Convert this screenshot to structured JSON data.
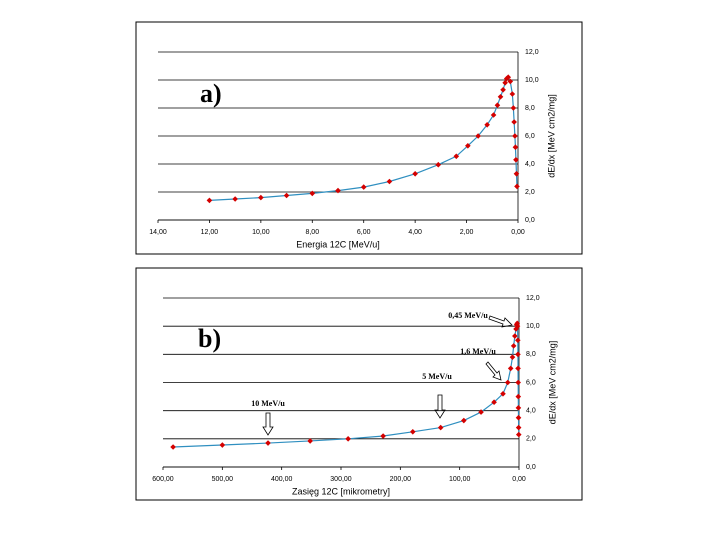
{
  "chart_data": [
    {
      "type": "line",
      "annotation": "a)",
      "x_label": "Energia 12C [MeV/u]",
      "y_label": "dE/dx [MeV cm2/mg]",
      "xlim": [
        14,
        0
      ],
      "ylim": [
        0,
        12
      ],
      "xticks": [
        {
          "value": 14,
          "label": "14,00"
        },
        {
          "value": 12,
          "label": "12,00"
        },
        {
          "value": 10,
          "label": "10,00"
        },
        {
          "value": 8,
          "label": "8,00"
        },
        {
          "value": 6,
          "label": "6,00"
        },
        {
          "value": 4,
          "label": "4,00"
        },
        {
          "value": 2,
          "label": "2,00"
        },
        {
          "value": 0,
          "label": "0,00"
        }
      ],
      "yticks": [
        {
          "value": 0,
          "label": "0,0"
        },
        {
          "value": 2,
          "label": "2,0"
        },
        {
          "value": 4,
          "label": "4,0"
        },
        {
          "value": 6,
          "label": "6,0"
        },
        {
          "value": 8,
          "label": "8,0"
        },
        {
          "value": 10,
          "label": "10,0"
        },
        {
          "value": 12,
          "label": "12,0"
        }
      ],
      "grid": true,
      "color": "#2f8fc0",
      "marker_color": "#d40000",
      "x": [
        12,
        11,
        10,
        9,
        8,
        7,
        6,
        5,
        4,
        3.1,
        2.4,
        1.95,
        1.55,
        1.2,
        0.95,
        0.8,
        0.68,
        0.58,
        0.5,
        0.44,
        0.38,
        0.3,
        0.22,
        0.18,
        0.15,
        0.12,
        0.1,
        0.08,
        0.06,
        0.04
      ],
      "values": [
        1.4,
        1.5,
        1.6,
        1.75,
        1.9,
        2.1,
        2.35,
        2.75,
        3.3,
        3.95,
        4.55,
        5.3,
        6.0,
        6.8,
        7.5,
        8.2,
        8.8,
        9.3,
        9.8,
        10.1,
        10.2,
        9.9,
        9.0,
        8.0,
        7.0,
        6.0,
        5.2,
        4.3,
        3.3,
        2.4
      ]
    },
    {
      "type": "line",
      "annotation": "b)",
      "notes": [
        "0,45 MeV/u",
        "1,6 MeV/u",
        "5 MeV/u",
        "10 MeV/u"
      ],
      "x_label": "Zasięg 12C [mikrometry]",
      "y_label": "dE/dx [MeV cm2/mg]",
      "xlim": [
        600,
        0
      ],
      "ylim": [
        0,
        12
      ],
      "xticks": [
        {
          "value": 600,
          "label": "600,00"
        },
        {
          "value": 500,
          "label": "500,00"
        },
        {
          "value": 400,
          "label": "400,00"
        },
        {
          "value": 300,
          "label": "300,00"
        },
        {
          "value": 200,
          "label": "200,00"
        },
        {
          "value": 100,
          "label": "100,00"
        },
        {
          "value": 0,
          "label": "0,00"
        }
      ],
      "yticks": [
        {
          "value": 0,
          "label": "0,0"
        },
        {
          "value": 2,
          "label": "2,0"
        },
        {
          "value": 4,
          "label": "4,0"
        },
        {
          "value": 6,
          "label": "6,0"
        },
        {
          "value": 8,
          "label": "8,0"
        },
        {
          "value": 10,
          "label": "10,0"
        },
        {
          "value": 12,
          "label": "12,0"
        }
      ],
      "grid": true,
      "color": "#2f8fc0",
      "marker_color": "#d40000",
      "x": [
        583,
        500,
        423,
        352,
        288,
        229,
        179,
        132,
        93,
        64,
        42,
        27,
        19,
        14,
        11,
        9,
        7,
        5,
        4,
        3,
        2.5,
        2,
        1.8,
        1.6,
        1.4,
        1.2,
        1,
        0.8,
        0.6,
        0.4
      ],
      "values": [
        1.42,
        1.56,
        1.7,
        1.85,
        2.0,
        2.2,
        2.5,
        2.8,
        3.3,
        3.9,
        4.6,
        5.2,
        6.0,
        7.0,
        7.8,
        8.6,
        9.3,
        9.8,
        10.1,
        10.2,
        10.0,
        9.0,
        8.0,
        7.0,
        6.0,
        5.0,
        4.2,
        3.5,
        2.8,
        2.3
      ]
    }
  ]
}
